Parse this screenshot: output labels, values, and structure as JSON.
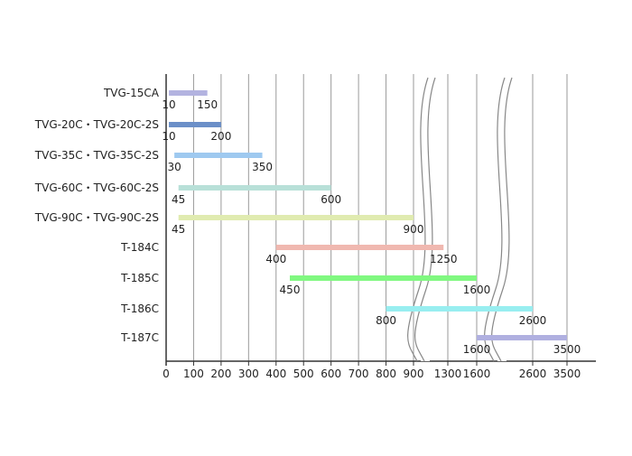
{
  "chart_data": {
    "type": "bar",
    "orientation": "horizontal",
    "subtype": "range",
    "title": "",
    "xlabel": "",
    "ylabel": "",
    "axis_break": "two breaks (between 900 and 1300, between 1600 and 2600)",
    "grid": "vertical lines",
    "x_ticks": [
      "0",
      "100",
      "200",
      "300",
      "400",
      "500",
      "600",
      "700",
      "800",
      "900",
      "1300",
      "1600",
      "2600",
      "3500"
    ],
    "categories": [
      "TVG-15CA",
      "TVG-20C・TVG-20C-2S",
      "TVG-35C・TVG-35C-2S",
      "TVG-60C・TVG-60C-2S",
      "TVG-90C・TVG-90C-2S",
      "T-184C",
      "T-185C",
      "T-186C",
      "T-187C"
    ],
    "series": [
      {
        "ranges": [
          {
            "min": 10,
            "max": 150,
            "min_label": "10",
            "max_label": "150",
            "color": "#b3b3e0"
          },
          {
            "min": 10,
            "max": 200,
            "min_label": "10",
            "max_label": "200",
            "color": "#6b8fc8"
          },
          {
            "min": 30,
            "max": 350,
            "min_label": "30",
            "max_label": "350",
            "color": "#9ec9f0"
          },
          {
            "min": 45,
            "max": 600,
            "min_label": "45",
            "max_label": "600",
            "color": "#b8e0d8"
          },
          {
            "min": 45,
            "max": 900,
            "min_label": "45",
            "max_label": "900",
            "color": "#e0ebb0"
          },
          {
            "min": 400,
            "max": 1250,
            "min_label": "400",
            "max_label": "1250",
            "color": "#f0b8b0"
          },
          {
            "min": 450,
            "max": 1600,
            "min_label": "450",
            "max_label": "1600",
            "color": "#80f880"
          },
          {
            "min": 800,
            "max": 2600,
            "min_label": "800",
            "max_label": "2600",
            "color": "#98eef0"
          },
          {
            "min": 1600,
            "max": 3500,
            "min_label": "1600",
            "max_label": "3500",
            "color": "#b0b0e0"
          }
        ]
      }
    ]
  }
}
